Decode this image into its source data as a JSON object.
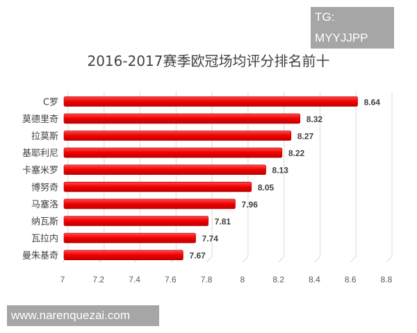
{
  "watermarks": {
    "top_right": "TG: MYYJJPP",
    "bottom_left": "www.narenquezai.com"
  },
  "chart_data": {
    "type": "bar",
    "orientation": "horizontal",
    "title": "2016-2017赛季欧冠场均评分排名前十",
    "categories": [
      "C罗",
      "莫德里奇",
      "拉莫斯",
      "基耶利尼",
      "卡塞米罗",
      "博努奇",
      "马塞洛",
      "纳瓦斯",
      "瓦拉内",
      "曼朱基奇"
    ],
    "values": [
      8.64,
      8.32,
      8.27,
      8.22,
      8.13,
      8.05,
      7.96,
      7.81,
      7.74,
      7.67
    ],
    "data_labels": [
      "8.64",
      "8.32",
      "8.27",
      "8.22",
      "8.13",
      "8.05",
      "7.96",
      "7.81",
      "7.74",
      "7.67"
    ],
    "xlim": [
      7,
      8.8
    ],
    "x_ticks": [
      "7",
      "7.2",
      "7.4",
      "7.6",
      "7.8",
      "8",
      "8.2",
      "8.4",
      "8.6",
      "8.8"
    ],
    "grid": true,
    "style": "3d",
    "bar_color": "#ee0000",
    "xlabel": "",
    "ylabel": ""
  }
}
